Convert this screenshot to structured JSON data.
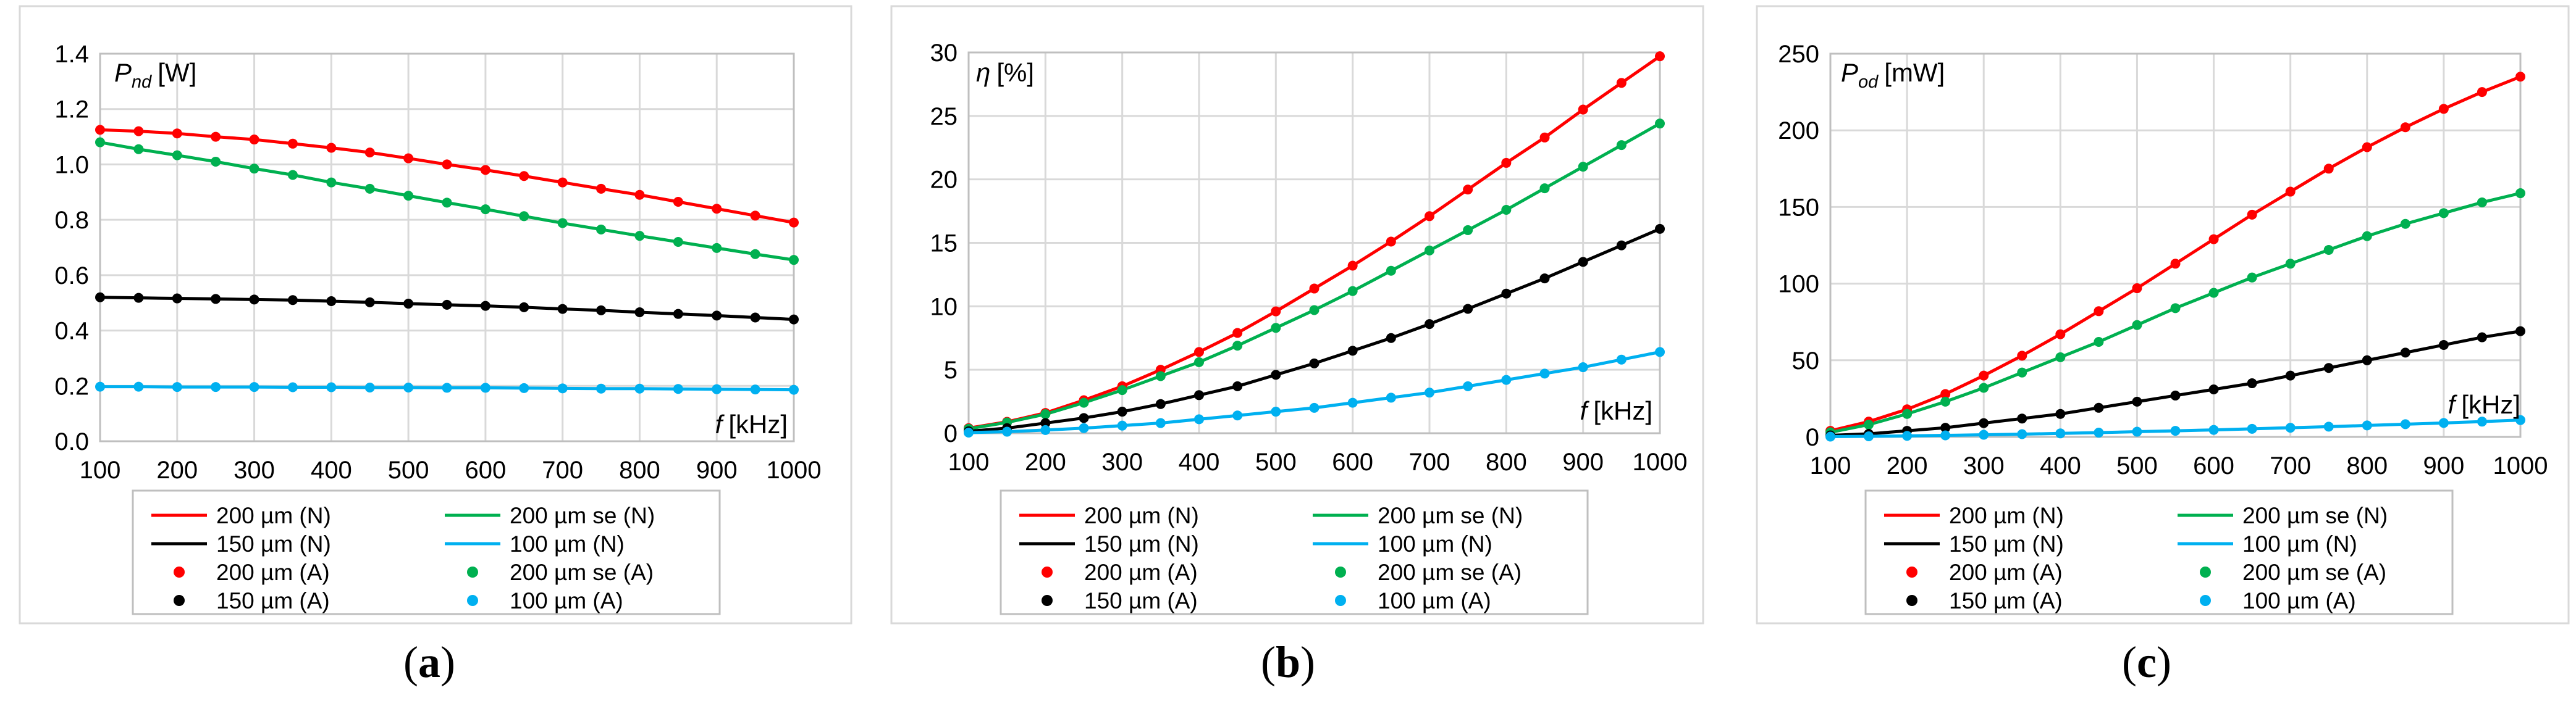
{
  "chart_data": [
    {
      "type": "line",
      "panel_label": "a",
      "ylabel_symbol": "P",
      "ylabel_sub": "nd",
      "ylabel_unit": "[W]",
      "xlabel_symbol": "f",
      "xlabel_unit": "[kHz]",
      "x": [
        100,
        150,
        200,
        250,
        300,
        350,
        400,
        450,
        500,
        550,
        600,
        650,
        700,
        750,
        800,
        850,
        900,
        950,
        1000
      ],
      "xticks": [
        "100",
        "200",
        "300",
        "400",
        "500",
        "600",
        "700",
        "800",
        "900",
        "1000"
      ],
      "xtick_values": [
        100,
        200,
        300,
        400,
        500,
        600,
        700,
        800,
        900,
        1000
      ],
      "xlim": [
        100,
        1000
      ],
      "ylim": [
        0,
        1.4
      ],
      "yticks": [
        "0.0",
        "0.2",
        "0.4",
        "0.6",
        "0.8",
        "1.0",
        "1.2",
        "1.4"
      ],
      "ytick_values": [
        0,
        0.2,
        0.4,
        0.6,
        0.8,
        1.0,
        1.2,
        1.4
      ],
      "series": [
        {
          "name": "200 µm (N)",
          "kind": "line",
          "color": "#ff0000",
          "values": [
            1.125,
            1.12,
            1.112,
            1.1,
            1.09,
            1.075,
            1.06,
            1.043,
            1.022,
            1.0,
            0.98,
            0.958,
            0.935,
            0.912,
            0.89,
            0.865,
            0.84,
            0.815,
            0.79
          ]
        },
        {
          "name": "200 µm se (N)",
          "kind": "line",
          "color": "#00b050",
          "values": [
            1.08,
            1.055,
            1.033,
            1.01,
            0.985,
            0.962,
            0.935,
            0.912,
            0.887,
            0.862,
            0.838,
            0.813,
            0.788,
            0.765,
            0.742,
            0.72,
            0.698,
            0.676,
            0.655
          ]
        },
        {
          "name": "150 µm (N)",
          "kind": "line",
          "color": "#000000",
          "values": [
            0.52,
            0.518,
            0.516,
            0.514,
            0.512,
            0.51,
            0.506,
            0.502,
            0.497,
            0.493,
            0.489,
            0.484,
            0.478,
            0.473,
            0.466,
            0.46,
            0.454,
            0.447,
            0.44
          ]
        },
        {
          "name": "100 µm (N)",
          "kind": "line",
          "color": "#00b0f0",
          "values": [
            0.197,
            0.197,
            0.196,
            0.196,
            0.196,
            0.195,
            0.195,
            0.194,
            0.194,
            0.193,
            0.193,
            0.192,
            0.191,
            0.19,
            0.19,
            0.189,
            0.188,
            0.187,
            0.186
          ]
        },
        {
          "name": "200 µm (A)",
          "kind": "marker",
          "color": "#ff0000",
          "values": [
            1.125,
            1.12,
            1.112,
            1.1,
            1.09,
            1.075,
            1.06,
            1.043,
            1.022,
            1.0,
            0.98,
            0.958,
            0.935,
            0.912,
            0.89,
            0.865,
            0.84,
            0.815,
            0.79
          ]
        },
        {
          "name": "200 µm se (A)",
          "kind": "marker",
          "color": "#00b050",
          "values": [
            1.08,
            1.055,
            1.033,
            1.01,
            0.985,
            0.962,
            0.935,
            0.912,
            0.887,
            0.862,
            0.838,
            0.813,
            0.788,
            0.765,
            0.742,
            0.72,
            0.698,
            0.676,
            0.655
          ]
        },
        {
          "name": "150 µm (A)",
          "kind": "marker",
          "color": "#000000",
          "values": [
            0.52,
            0.518,
            0.516,
            0.514,
            0.512,
            0.51,
            0.506,
            0.502,
            0.497,
            0.493,
            0.489,
            0.484,
            0.478,
            0.473,
            0.466,
            0.46,
            0.454,
            0.447,
            0.44
          ]
        },
        {
          "name": "100 µm (A)",
          "kind": "marker",
          "color": "#00b0f0",
          "values": [
            0.197,
            0.197,
            0.196,
            0.196,
            0.196,
            0.195,
            0.195,
            0.194,
            0.194,
            0.193,
            0.193,
            0.192,
            0.191,
            0.19,
            0.19,
            0.189,
            0.188,
            0.187,
            0.186
          ]
        }
      ],
      "legend": "bottom",
      "grid": true
    },
    {
      "type": "line",
      "panel_label": "b",
      "ylabel_symbol": "η",
      "ylabel_sub": "",
      "ylabel_unit": "[%]",
      "xlabel_symbol": "f",
      "xlabel_unit": "[kHz]",
      "x": [
        100,
        150,
        200,
        250,
        300,
        350,
        400,
        450,
        500,
        550,
        600,
        650,
        700,
        750,
        800,
        850,
        900,
        950,
        1000
      ],
      "xticks": [
        "100",
        "200",
        "300",
        "400",
        "500",
        "600",
        "700",
        "800",
        "900",
        "1000"
      ],
      "xtick_values": [
        100,
        200,
        300,
        400,
        500,
        600,
        700,
        800,
        900,
        1000
      ],
      "xlim": [
        100,
        1000
      ],
      "ylim": [
        0,
        30
      ],
      "yticks": [
        "0",
        "5",
        "10",
        "15",
        "20",
        "25",
        "30"
      ],
      "ytick_values": [
        0,
        5,
        10,
        15,
        20,
        25,
        30
      ],
      "series": [
        {
          "name": "200 µm (N)",
          "kind": "line",
          "color": "#ff0000",
          "values": [
            0.4,
            0.9,
            1.6,
            2.6,
            3.7,
            5.0,
            6.4,
            7.9,
            9.6,
            11.4,
            13.2,
            15.1,
            17.1,
            19.2,
            21.3,
            23.3,
            25.5,
            27.6,
            29.7
          ]
        },
        {
          "name": "200 µm se (N)",
          "kind": "line",
          "color": "#00b050",
          "values": [
            0.35,
            0.85,
            1.5,
            2.4,
            3.4,
            4.5,
            5.6,
            6.9,
            8.3,
            9.7,
            11.2,
            12.8,
            14.4,
            16.0,
            17.6,
            19.3,
            21.0,
            22.7,
            24.4
          ]
        },
        {
          "name": "150 µm (N)",
          "kind": "line",
          "color": "#000000",
          "values": [
            0.15,
            0.4,
            0.8,
            1.2,
            1.7,
            2.3,
            3.0,
            3.7,
            4.6,
            5.5,
            6.5,
            7.5,
            8.6,
            9.8,
            11.0,
            12.2,
            13.5,
            14.8,
            16.1
          ]
        },
        {
          "name": "100 µm (N)",
          "kind": "line",
          "color": "#00b0f0",
          "values": [
            0.05,
            0.12,
            0.25,
            0.4,
            0.6,
            0.8,
            1.1,
            1.4,
            1.7,
            2.0,
            2.4,
            2.8,
            3.2,
            3.7,
            4.2,
            4.7,
            5.2,
            5.8,
            6.4
          ]
        },
        {
          "name": "200 µm (A)",
          "kind": "marker",
          "color": "#ff0000",
          "values": [
            0.4,
            0.9,
            1.6,
            2.6,
            3.7,
            5.0,
            6.4,
            7.9,
            9.6,
            11.4,
            13.2,
            15.1,
            17.1,
            19.2,
            21.3,
            23.3,
            25.5,
            27.6,
            29.7
          ]
        },
        {
          "name": "200 µm se (A)",
          "kind": "marker",
          "color": "#00b050",
          "values": [
            0.35,
            0.85,
            1.5,
            2.4,
            3.4,
            4.5,
            5.6,
            6.9,
            8.3,
            9.7,
            11.2,
            12.8,
            14.4,
            16.0,
            17.6,
            19.3,
            21.0,
            22.7,
            24.4
          ]
        },
        {
          "name": "150 µm (A)",
          "kind": "marker",
          "color": "#000000",
          "values": [
            0.15,
            0.4,
            0.8,
            1.2,
            1.7,
            2.3,
            3.0,
            3.7,
            4.6,
            5.5,
            6.5,
            7.5,
            8.6,
            9.8,
            11.0,
            12.2,
            13.5,
            14.8,
            16.1
          ]
        },
        {
          "name": "100 µm (A)",
          "kind": "marker",
          "color": "#00b0f0",
          "values": [
            0.05,
            0.12,
            0.25,
            0.4,
            0.6,
            0.8,
            1.1,
            1.4,
            1.7,
            2.0,
            2.4,
            2.8,
            3.2,
            3.7,
            4.2,
            4.7,
            5.2,
            5.8,
            6.4
          ]
        }
      ],
      "legend": "bottom",
      "grid": true
    },
    {
      "type": "line",
      "panel_label": "c",
      "ylabel_symbol": "P",
      "ylabel_sub": "od",
      "ylabel_unit": "[mW]",
      "xlabel_symbol": "f",
      "xlabel_unit": "[kHz]",
      "x": [
        100,
        150,
        200,
        250,
        300,
        350,
        400,
        450,
        500,
        550,
        600,
        650,
        700,
        750,
        800,
        850,
        900,
        950,
        1000
      ],
      "xticks": [
        "100",
        "200",
        "300",
        "400",
        "500",
        "600",
        "700",
        "800",
        "900",
        "1000"
      ],
      "xtick_values": [
        100,
        200,
        300,
        400,
        500,
        600,
        700,
        800,
        900,
        1000
      ],
      "xlim": [
        100,
        1000
      ],
      "ylim": [
        0,
        250
      ],
      "yticks": [
        "0",
        "50",
        "100",
        "150",
        "200",
        "250"
      ],
      "ytick_values": [
        0,
        50,
        100,
        150,
        200,
        250
      ],
      "series": [
        {
          "name": "200 µm (N)",
          "kind": "line",
          "color": "#ff0000",
          "values": [
            4,
            10,
            18,
            28,
            40,
            53,
            67,
            82,
            97,
            113,
            129,
            145,
            160,
            175,
            189,
            202,
            214,
            225,
            235
          ]
        },
        {
          "name": "200 µm se (N)",
          "kind": "line",
          "color": "#00b050",
          "values": [
            3,
            8,
            15,
            23,
            32,
            42,
            52,
            62,
            73,
            84,
            94,
            104,
            113,
            122,
            131,
            139,
            146,
            153,
            159
          ]
        },
        {
          "name": "150 µm (N)",
          "kind": "line",
          "color": "#000000",
          "values": [
            1,
            2,
            4,
            6,
            9,
            12,
            15,
            19,
            23,
            27,
            31,
            35,
            40,
            45,
            50,
            55,
            60,
            65,
            69
          ]
        },
        {
          "name": "100 µm (N)",
          "kind": "line",
          "color": "#00b0f0",
          "values": [
            0.2,
            0.4,
            0.7,
            1.0,
            1.4,
            1.8,
            2.3,
            2.8,
            3.4,
            4.0,
            4.6,
            5.3,
            6.0,
            6.7,
            7.5,
            8.3,
            9.1,
            10.0,
            11.0
          ]
        },
        {
          "name": "200 µm (A)",
          "kind": "marker",
          "color": "#ff0000",
          "values": [
            4,
            10,
            18,
            28,
            40,
            53,
            67,
            82,
            97,
            113,
            129,
            145,
            160,
            175,
            189,
            202,
            214,
            225,
            235
          ]
        },
        {
          "name": "200 µm se (A)",
          "kind": "marker",
          "color": "#00b050",
          "values": [
            3,
            8,
            15,
            23,
            32,
            42,
            52,
            62,
            73,
            84,
            94,
            104,
            113,
            122,
            131,
            139,
            146,
            153,
            159
          ]
        },
        {
          "name": "150 µm (A)",
          "kind": "marker",
          "color": "#000000",
          "values": [
            1,
            2,
            4,
            6,
            9,
            12,
            15,
            19,
            23,
            27,
            31,
            35,
            40,
            45,
            50,
            55,
            60,
            65,
            69
          ]
        },
        {
          "name": "100 µm (A)",
          "kind": "marker",
          "color": "#00b0f0",
          "values": [
            0.2,
            0.4,
            0.7,
            1.0,
            1.4,
            1.8,
            2.3,
            2.8,
            3.4,
            4.0,
            4.6,
            5.3,
            6.0,
            6.7,
            7.5,
            8.3,
            9.1,
            10.0,
            11.0
          ]
        }
      ],
      "legend": "bottom",
      "grid": true
    }
  ]
}
